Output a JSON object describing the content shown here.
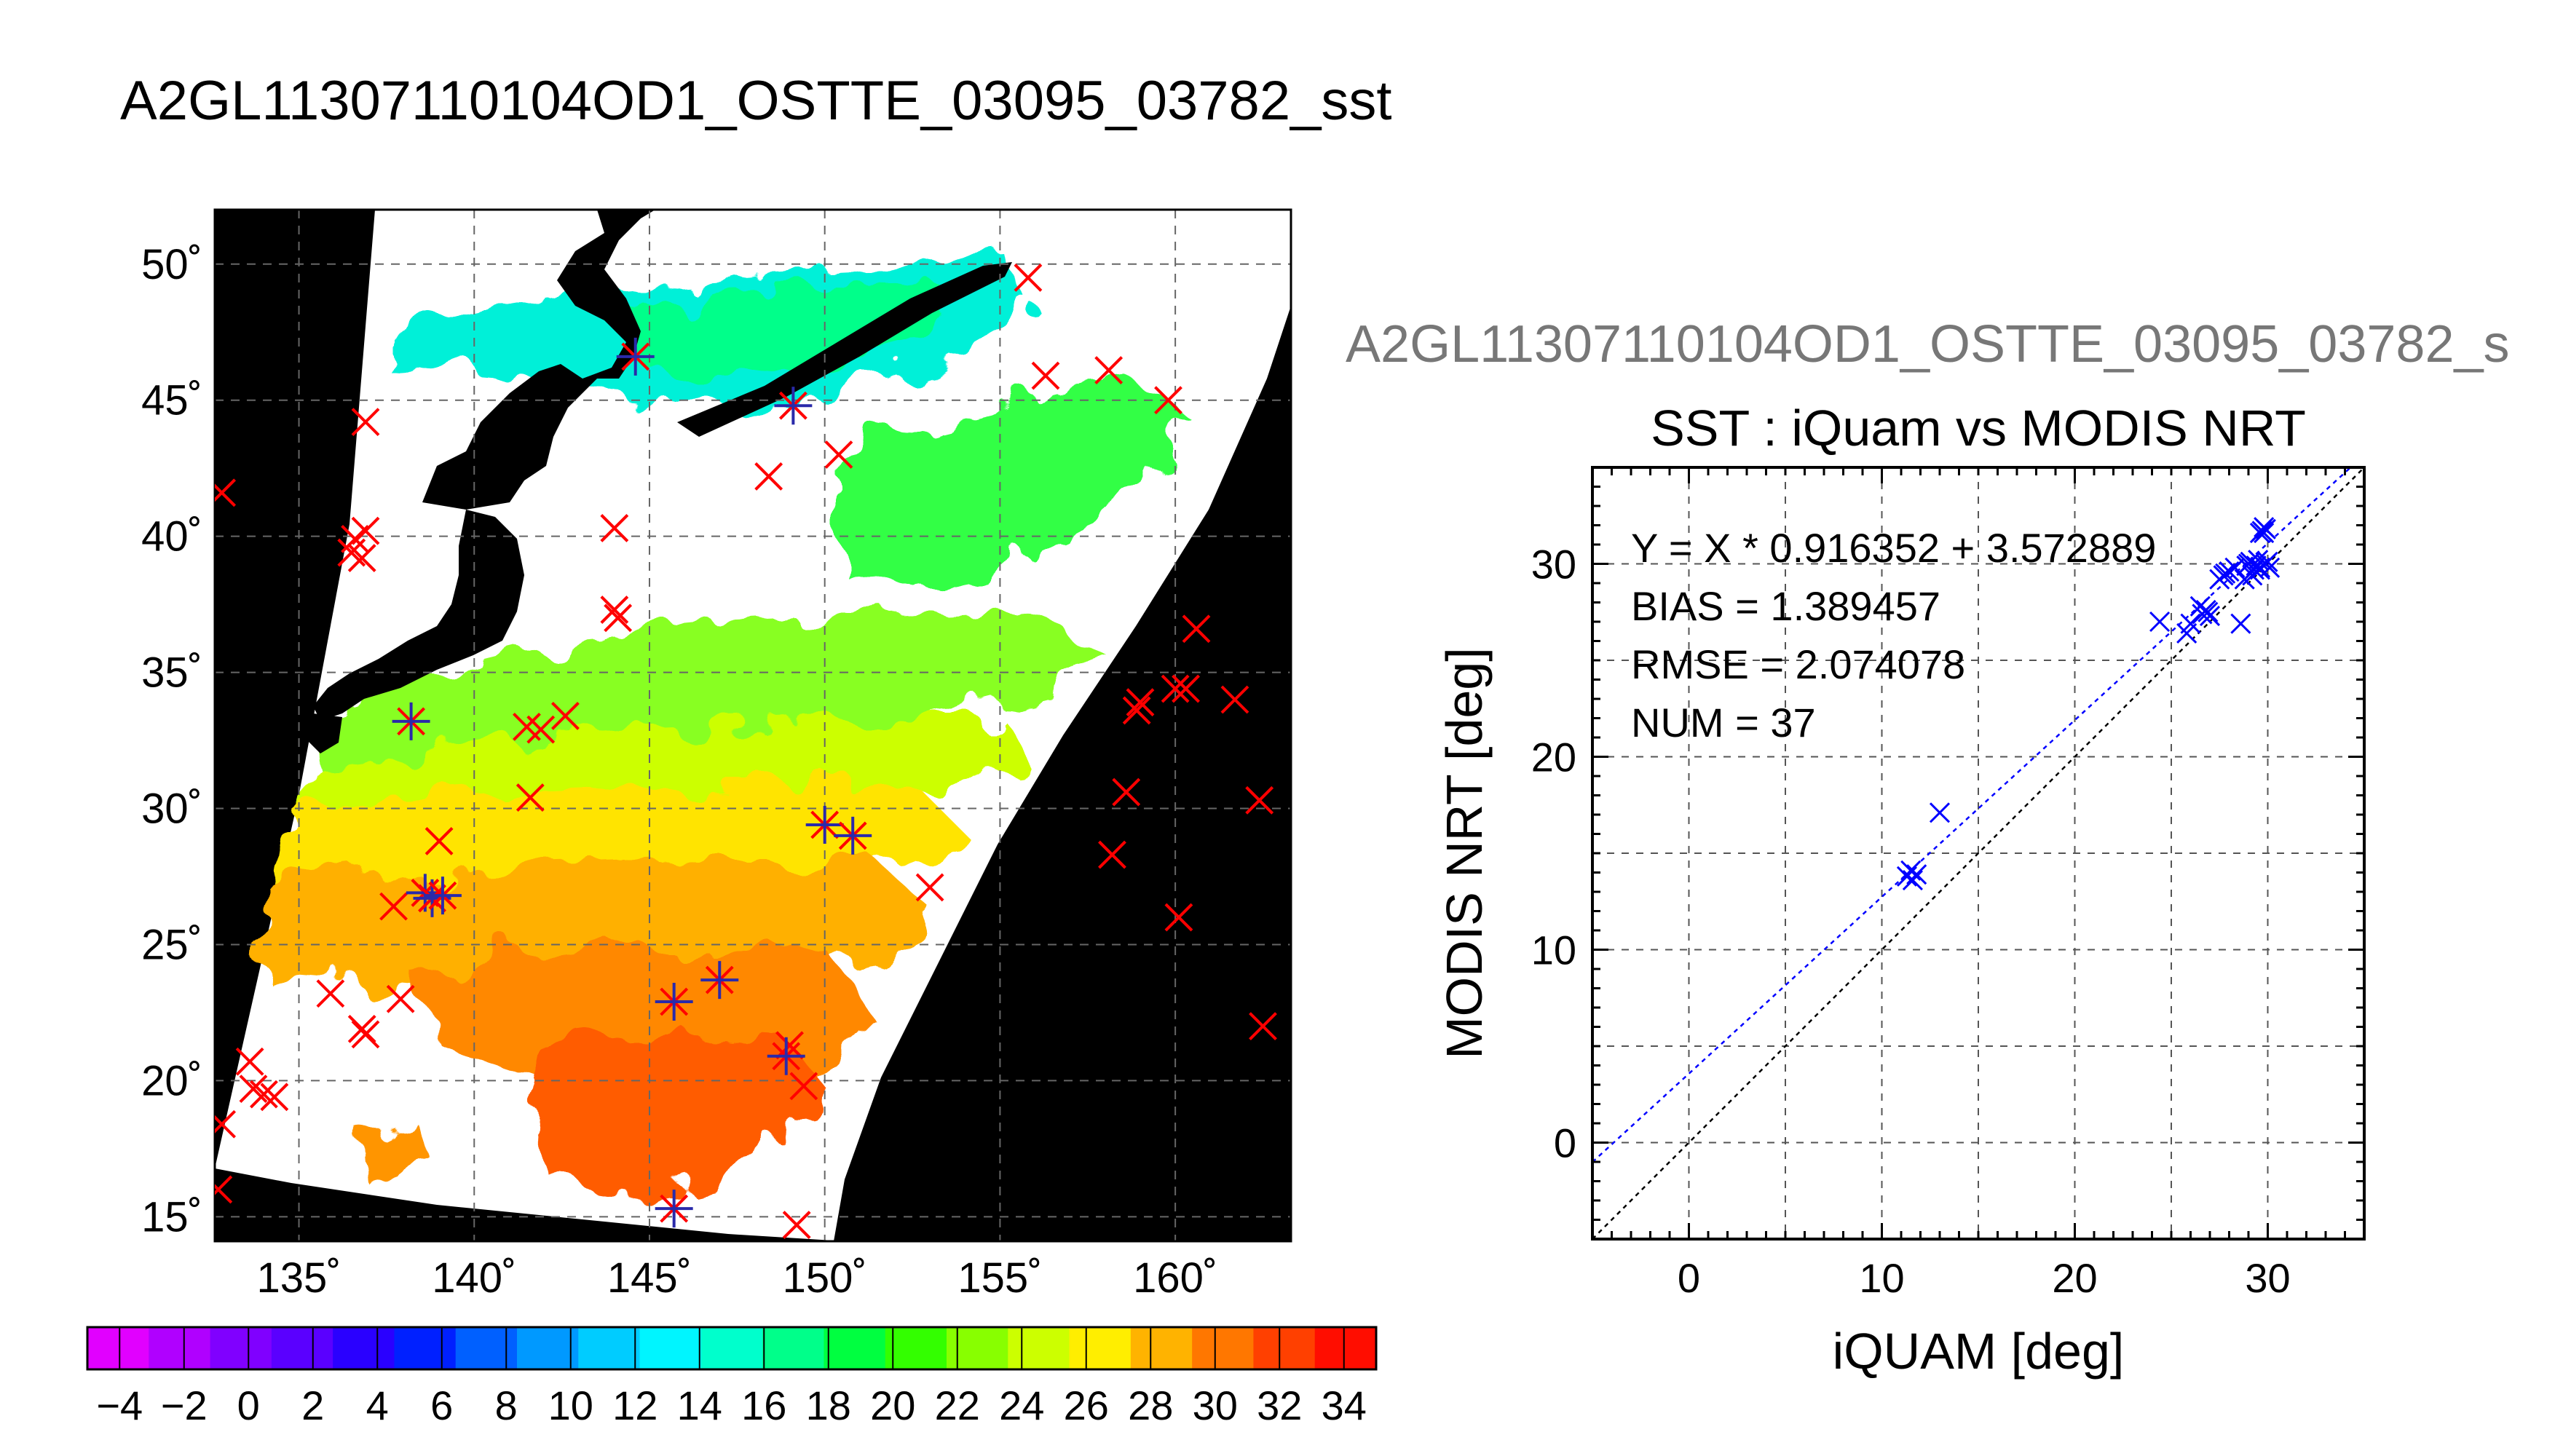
{
  "page_title": "A2GL11307110104OD1_OSTTE_03095_03782_sst",
  "map": {
    "lon_ticks": [
      "135˚",
      "140˚",
      "145˚",
      "150˚",
      "155˚",
      "160˚"
    ],
    "lat_ticks": [
      "50˚",
      "45˚",
      "40˚",
      "35˚",
      "30˚",
      "25˚",
      "20˚",
      "15˚"
    ],
    "lon_range": [
      132.6,
      163.3
    ],
    "lat_range": [
      14.1,
      52.0
    ]
  },
  "colorbar": {
    "tick_labels": [
      "−4",
      "−2",
      "0",
      "2",
      "4",
      "6",
      "8",
      "10",
      "12",
      "14",
      "16",
      "18",
      "20",
      "22",
      "24",
      "26",
      "28",
      "30",
      "32",
      "34"
    ],
    "range": [
      -5,
      35
    ],
    "colors": [
      "#e100ff",
      "#b000ff",
      "#8000ff",
      "#5a00ff",
      "#2a00ff",
      "#0020ff",
      "#0060ff",
      "#0099ff",
      "#00ccff",
      "#00f5ff",
      "#00ffcc",
      "#00ff8a",
      "#00ff40",
      "#33ff00",
      "#88ff00",
      "#ccff00",
      "#ffee00",
      "#ffb300",
      "#ff7700",
      "#ff4000",
      "#ff0d00"
    ]
  },
  "scatter_subtitle": "A2GL11307110104OD1_OSTTE_03095_03782_s",
  "chart_data": {
    "type": "scatter",
    "title": "SST : iQuam vs MODIS NRT",
    "xlabel": "iQUAM [deg]",
    "ylabel": "MODIS NRT [deg]",
    "xlim": [
      -5,
      35
    ],
    "ylim": [
      -5,
      35
    ],
    "xticks": [
      "0",
      "10",
      "20",
      "30"
    ],
    "yticks": [
      "0",
      "10",
      "20",
      "30"
    ],
    "grid": true,
    "stats": [
      "Y = X * 0.916352 + 3.572889",
      "BIAS = 1.389457",
      "RMSE = 2.074078",
      "NUM = 37"
    ],
    "fit": {
      "slope": 0.916352,
      "intercept": 3.572889,
      "color": "#0000ff"
    },
    "one_to_one_color": "#000000",
    "marker_color": "#0000ff",
    "points": [
      [
        11.3,
        13.8
      ],
      [
        11.5,
        14.1
      ],
      [
        11.6,
        13.6
      ],
      [
        11.8,
        13.9
      ],
      [
        13.0,
        17.1
      ],
      [
        24.4,
        27.0
      ],
      [
        25.8,
        26.4
      ],
      [
        26.0,
        26.9
      ],
      [
        26.5,
        27.8
      ],
      [
        26.6,
        27.4
      ],
      [
        26.8,
        27.6
      ],
      [
        26.9,
        27.5
      ],
      [
        27.0,
        27.3
      ],
      [
        27.5,
        29.2
      ],
      [
        27.7,
        29.4
      ],
      [
        27.8,
        29.5
      ],
      [
        28.0,
        29.6
      ],
      [
        28.3,
        29.8
      ],
      [
        28.6,
        26.9
      ],
      [
        28.8,
        29.2
      ],
      [
        28.9,
        29.9
      ],
      [
        29.0,
        30.0
      ],
      [
        29.1,
        30.1
      ],
      [
        29.2,
        29.4
      ],
      [
        29.3,
        29.7
      ],
      [
        29.4,
        29.9
      ],
      [
        29.5,
        30.2
      ],
      [
        29.6,
        29.8
      ],
      [
        29.7,
        31.7
      ],
      [
        29.8,
        31.6
      ],
      [
        29.9,
        31.8
      ],
      [
        29.6,
        31.6
      ],
      [
        29.9,
        30.0
      ],
      [
        30.0,
        30.1
      ],
      [
        30.1,
        29.8
      ],
      [
        29.6,
        29.7
      ],
      [
        29.8,
        31.9
      ]
    ]
  },
  "marks": {
    "red": [
      [
        132.8,
        41.6
      ],
      [
        136.9,
        44.2
      ],
      [
        136.5,
        39.4
      ],
      [
        136.6,
        39.9
      ],
      [
        136.9,
        40.2
      ],
      [
        136.8,
        39.2
      ],
      [
        144.0,
        40.3
      ],
      [
        144.0,
        37.3
      ],
      [
        144.1,
        37.0
      ],
      [
        141.5,
        33.0
      ],
      [
        141.9,
        32.9
      ],
      [
        142.6,
        33.4
      ],
      [
        141.6,
        30.4
      ],
      [
        137.7,
        26.4
      ],
      [
        135.9,
        23.2
      ],
      [
        136.8,
        21.9
      ],
      [
        136.9,
        21.7
      ],
      [
        137.9,
        23.0
      ],
      [
        133.6,
        20.7
      ],
      [
        133.7,
        19.7
      ],
      [
        134.0,
        19.5
      ],
      [
        134.3,
        19.4
      ],
      [
        132.8,
        18.4
      ],
      [
        132.7,
        16.0
      ],
      [
        149.0,
        21.3
      ],
      [
        149.4,
        19.8
      ],
      [
        149.2,
        14.7
      ],
      [
        148.4,
        42.2
      ],
      [
        150.4,
        43.0
      ],
      [
        153.0,
        27.1
      ],
      [
        155.8,
        49.5
      ],
      [
        156.3,
        45.9
      ],
      [
        158.1,
        46.1
      ],
      [
        159.8,
        45.0
      ],
      [
        158.2,
        28.3
      ],
      [
        158.6,
        30.6
      ],
      [
        158.9,
        33.6
      ],
      [
        159.0,
        33.9
      ],
      [
        160.0,
        34.4
      ],
      [
        160.3,
        34.4
      ],
      [
        160.6,
        36.6
      ],
      [
        161.7,
        34.0
      ],
      [
        162.4,
        30.3
      ],
      [
        160.1,
        26.0
      ],
      [
        162.5,
        22.0
      ],
      [
        139.0,
        28.8
      ]
    ],
    "star": [
      [
        144.6,
        46.6
      ],
      [
        149.1,
        44.8
      ],
      [
        138.2,
        33.2
      ],
      [
        138.6,
        26.9
      ],
      [
        138.8,
        26.7
      ],
      [
        139.1,
        26.8
      ],
      [
        150.0,
        29.4
      ],
      [
        150.8,
        29.0
      ],
      [
        145.7,
        22.9
      ],
      [
        147.0,
        23.7
      ],
      [
        148.9,
        20.9
      ],
      [
        145.7,
        15.3
      ]
    ]
  }
}
